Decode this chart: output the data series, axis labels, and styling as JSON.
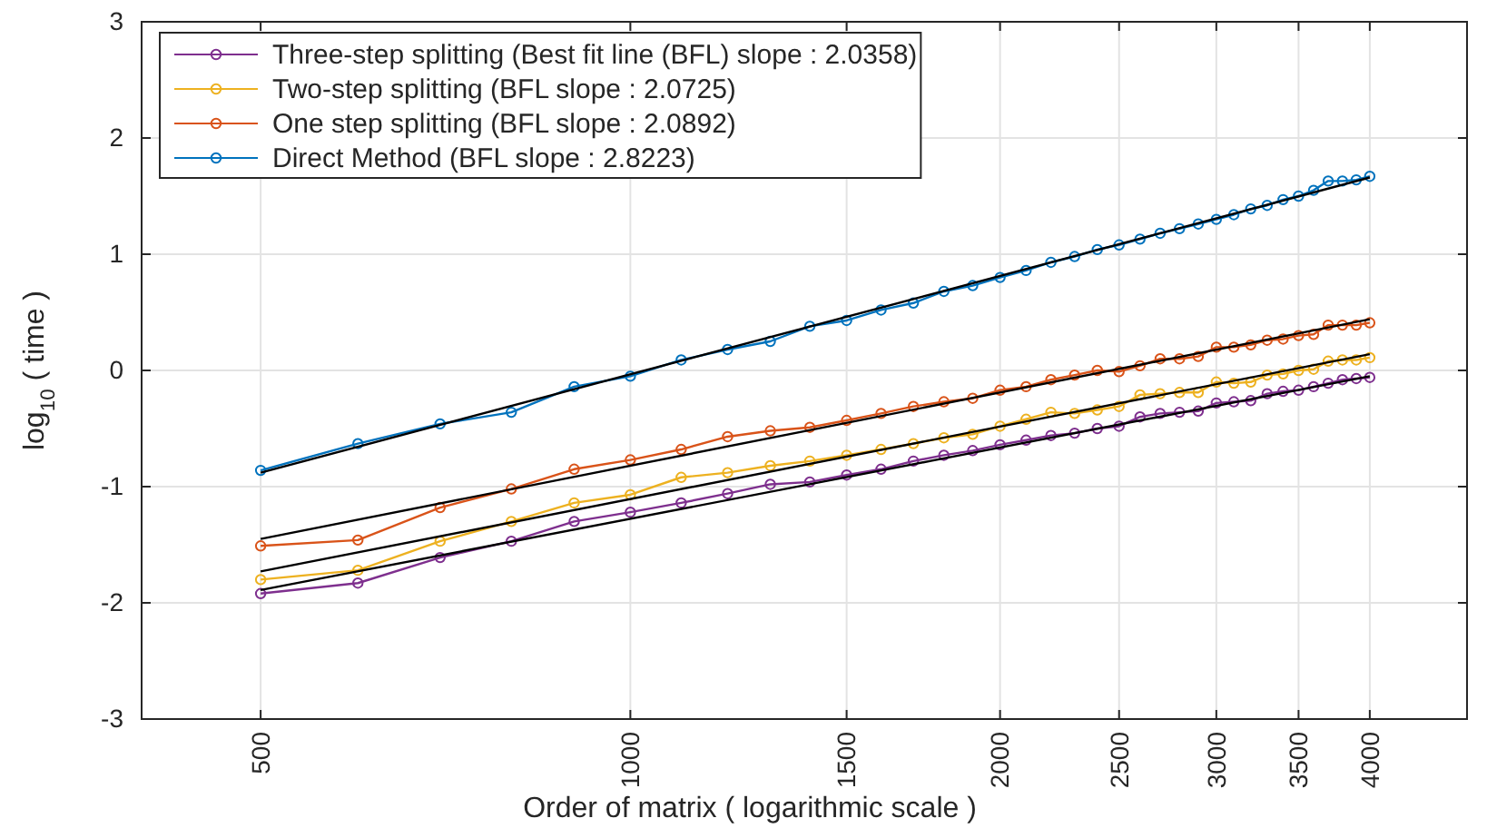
{
  "chart_data": {
    "type": "line",
    "xlabel": "Order of matrix ( logarithmic scale )",
    "ylabel": "log$_{10}$ ( time )",
    "log": "x",
    "xlim": [
      400,
      4800
    ],
    "xticks": [
      500,
      1000,
      1500,
      2000,
      2500,
      3000,
      3500,
      4000
    ],
    "ylim": [
      -3,
      3
    ],
    "yticks": [
      -3,
      -2,
      -1,
      0,
      1,
      2,
      3
    ],
    "grid": true,
    "legend": "top left",
    "marker": "circle",
    "line_style": "solid",
    "x": [
      500,
      600,
      700,
      800,
      900,
      1000,
      1100,
      1200,
      1300,
      1400,
      1500,
      1600,
      1700,
      1800,
      1900,
      2000,
      2100,
      2200,
      2300,
      2400,
      2500,
      2600,
      2700,
      2800,
      2900,
      3000,
      3100,
      3200,
      3300,
      3400,
      3500,
      3600,
      3700,
      3800,
      3900,
      4000
    ],
    "series": [
      {
        "name": "Three-step splitting (Best fit line (BFL) slope : 2.0358)",
        "color": "#7e2f8e",
        "values": [
          -1.92,
          -1.83,
          -1.61,
          -1.47,
          -1.3,
          -1.22,
          -1.14,
          -1.06,
          -0.98,
          -0.96,
          -0.9,
          -0.85,
          -0.78,
          -0.73,
          -0.69,
          -0.64,
          -0.6,
          -0.56,
          -0.54,
          -0.5,
          -0.48,
          -0.4,
          -0.37,
          -0.36,
          -0.35,
          -0.28,
          -0.27,
          -0.26,
          -0.2,
          -0.18,
          -0.17,
          -0.14,
          -0.11,
          -0.08,
          -0.07,
          -0.06
        ]
      },
      {
        "name": "Two-step splitting (BFL slope : 2.0725)",
        "color": "#edb120",
        "values": [
          -1.8,
          -1.72,
          -1.47,
          -1.3,
          -1.14,
          -1.07,
          -0.92,
          -0.88,
          -0.82,
          -0.78,
          -0.73,
          -0.68,
          -0.63,
          -0.58,
          -0.55,
          -0.48,
          -0.42,
          -0.36,
          -0.37,
          -0.34,
          -0.31,
          -0.21,
          -0.2,
          -0.19,
          -0.19,
          -0.1,
          -0.11,
          -0.1,
          -0.04,
          -0.03,
          0.0,
          0.01,
          0.08,
          0.09,
          0.09,
          0.11
        ]
      },
      {
        "name": "One step splitting (BFL slope : 2.0892)",
        "color": "#d95319",
        "values": [
          -1.51,
          -1.46,
          -1.18,
          -1.02,
          -0.85,
          -0.77,
          -0.68,
          -0.57,
          -0.52,
          -0.49,
          -0.43,
          -0.37,
          -0.31,
          -0.27,
          -0.24,
          -0.17,
          -0.14,
          -0.08,
          -0.04,
          0.0,
          -0.01,
          0.04,
          0.1,
          0.1,
          0.12,
          0.2,
          0.2,
          0.22,
          0.26,
          0.27,
          0.3,
          0.31,
          0.39,
          0.39,
          0.39,
          0.41
        ]
      },
      {
        "name": "Direct Method (BFL slope : 2.8223)",
        "color": "#0072bd",
        "values": [
          -0.86,
          -0.63,
          -0.46,
          -0.36,
          -0.14,
          -0.05,
          0.09,
          0.18,
          0.25,
          0.38,
          0.43,
          0.52,
          0.58,
          0.68,
          0.73,
          0.8,
          0.86,
          0.93,
          0.98,
          1.04,
          1.08,
          1.13,
          1.18,
          1.22,
          1.26,
          1.3,
          1.34,
          1.39,
          1.42,
          1.47,
          1.5,
          1.55,
          1.63,
          1.63,
          1.64,
          1.67
        ]
      },
      {
        "type": "line",
        "color": "#000000",
        "marker": "none",
        "values": [
          -1.89,
          null,
          null,
          null,
          null,
          null,
          null,
          null,
          null,
          null,
          null,
          null,
          null,
          null,
          null,
          null,
          null,
          null,
          null,
          null,
          null,
          null,
          null,
          null,
          null,
          null,
          null,
          null,
          null,
          null,
          null,
          null,
          null,
          null,
          null,
          -0.05
        ]
      },
      {
        "type": "line",
        "color": "#000000",
        "marker": "none",
        "values": [
          -1.73,
          null,
          null,
          null,
          null,
          null,
          null,
          null,
          null,
          null,
          null,
          null,
          null,
          null,
          null,
          null,
          null,
          null,
          null,
          null,
          null,
          null,
          null,
          null,
          null,
          null,
          null,
          null,
          null,
          null,
          null,
          null,
          null,
          null,
          null,
          0.14
        ]
      },
      {
        "type": "line",
        "color": "#000000",
        "marker": "none",
        "values": [
          -1.45,
          null,
          null,
          null,
          null,
          null,
          null,
          null,
          null,
          null,
          null,
          null,
          null,
          null,
          null,
          null,
          null,
          null,
          null,
          null,
          null,
          null,
          null,
          null,
          null,
          null,
          null,
          null,
          null,
          null,
          null,
          null,
          null,
          null,
          null,
          0.44
        ]
      },
      {
        "type": "line",
        "color": "#000000",
        "marker": "none",
        "values": [
          -0.88,
          null,
          null,
          null,
          null,
          null,
          null,
          null,
          null,
          null,
          null,
          null,
          null,
          null,
          null,
          null,
          null,
          null,
          null,
          null,
          null,
          null,
          null,
          null,
          null,
          null,
          null,
          null,
          null,
          null,
          null,
          null,
          null,
          null,
          null,
          1.66
        ]
      }
    ]
  }
}
